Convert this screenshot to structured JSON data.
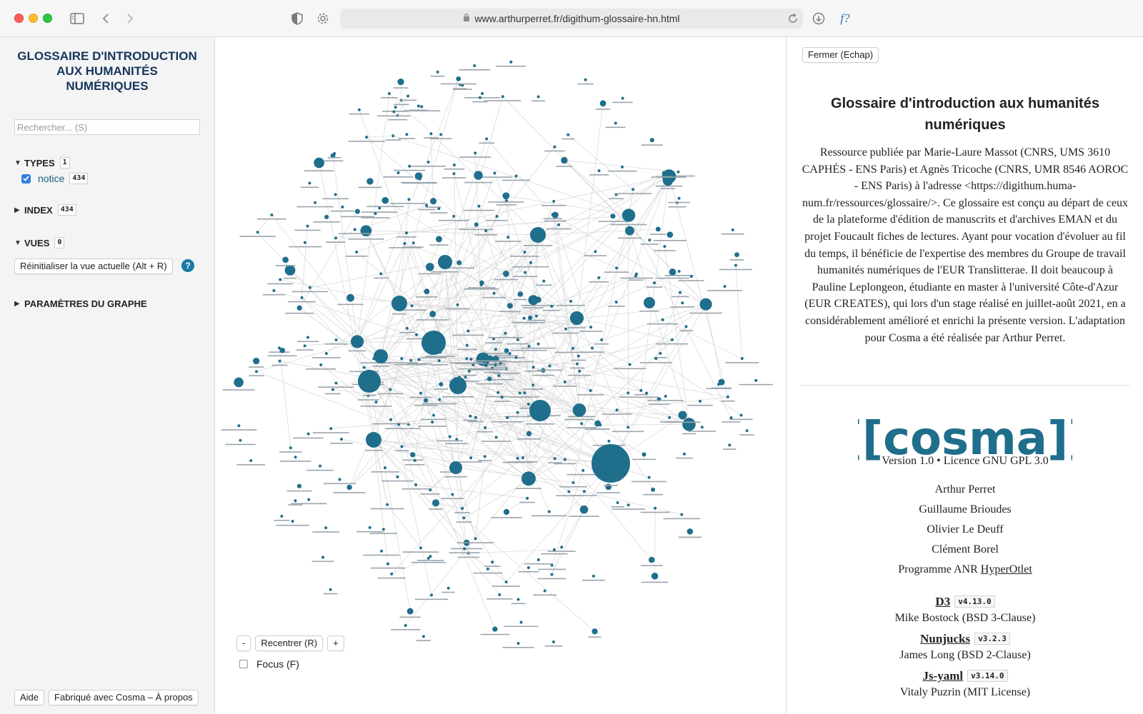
{
  "browser": {
    "url": "www.arthurperret.fr/digithum-glossaire-hn.html"
  },
  "sidebar": {
    "title": "GLOSSAIRE D'INTRODUCTION AUX HUMANITÉS NUMÉRIQUES",
    "search_placeholder": "Rechercher... (S)",
    "types": {
      "label": "TYPES",
      "count": "1",
      "items": [
        {
          "label": "notice",
          "count": "434",
          "checked": true
        }
      ]
    },
    "index": {
      "label": "INDEX",
      "count": "434"
    },
    "views": {
      "label": "VUES",
      "count": "0",
      "reset_label": "Réinitialiser la vue actuelle (Alt + R)",
      "help_label": "?"
    },
    "graph_params": {
      "label": "PARAMÈTRES DU GRAPHE"
    },
    "footer": {
      "help_label": "Aide",
      "about_label": "Fabriqué avec Cosma – À propos"
    }
  },
  "graph": {
    "node_color": "#1f6e8c",
    "link_color": "#d6d6d6",
    "zoom_out_label": "-",
    "recenter_label": "Recentrer (R)",
    "zoom_in_label": "+",
    "focus_label": "Focus (F)",
    "focus_checked": false
  },
  "panel": {
    "close_label": "Fermer (Echap)",
    "title": "Glossaire d'introduction aux humanités numériques",
    "description": "Ressource publiée par Marie-Laure Massot (CNRS, UMS 3610 CAPHÉS - ENS Paris) et Agnès Tricoche (CNRS, UMR 8546 AOROC - ENS Paris) à l'adresse <https://digithum.huma-num.fr/ressources/glossaire/>. Ce glossaire est conçu au départ de ceux de la plateforme d'édition de manuscrits et d'archives EMAN et du projet Foucault fiches de lectures. Ayant pour vocation d'évoluer au fil du temps, il bénéficie de l'expertise des membres du Groupe de travail humanités numériques de l'EUR Translitterae. Il doit beaucoup à Pauline Leplongeon, étudiante en master à l'université Côte-d'Azur (EUR CREATES), qui lors d'un stage réalisé en juillet-août 2021, en a considérablement amélioré et enrichi la présente version. L'adaptation pour Cosma a été réalisée par Arthur Perret.",
    "logo_text": "[[cosma]]",
    "logo_color": "#1f6e8c",
    "version": "Version 1.0 • Licence GNU GPL 3.0",
    "credits": [
      "Arthur Perret",
      "Guillaume Brioudes",
      "Olivier Le Deuff",
      "Clément Borel"
    ],
    "program_prefix": "Programme ANR ",
    "program_link": "HyperOtlet",
    "libraries": [
      {
        "name": "D3",
        "version": "v4.13.0",
        "author": "Mike Bostock (BSD 3-Clause)"
      },
      {
        "name": "Nunjucks",
        "version": "v3.2.3",
        "author": "James Long (BSD 2-Clause)"
      },
      {
        "name": "Js-yaml",
        "version": "v3.14.0",
        "author": "Vitaly Puzrin (MIT License)"
      }
    ]
  }
}
